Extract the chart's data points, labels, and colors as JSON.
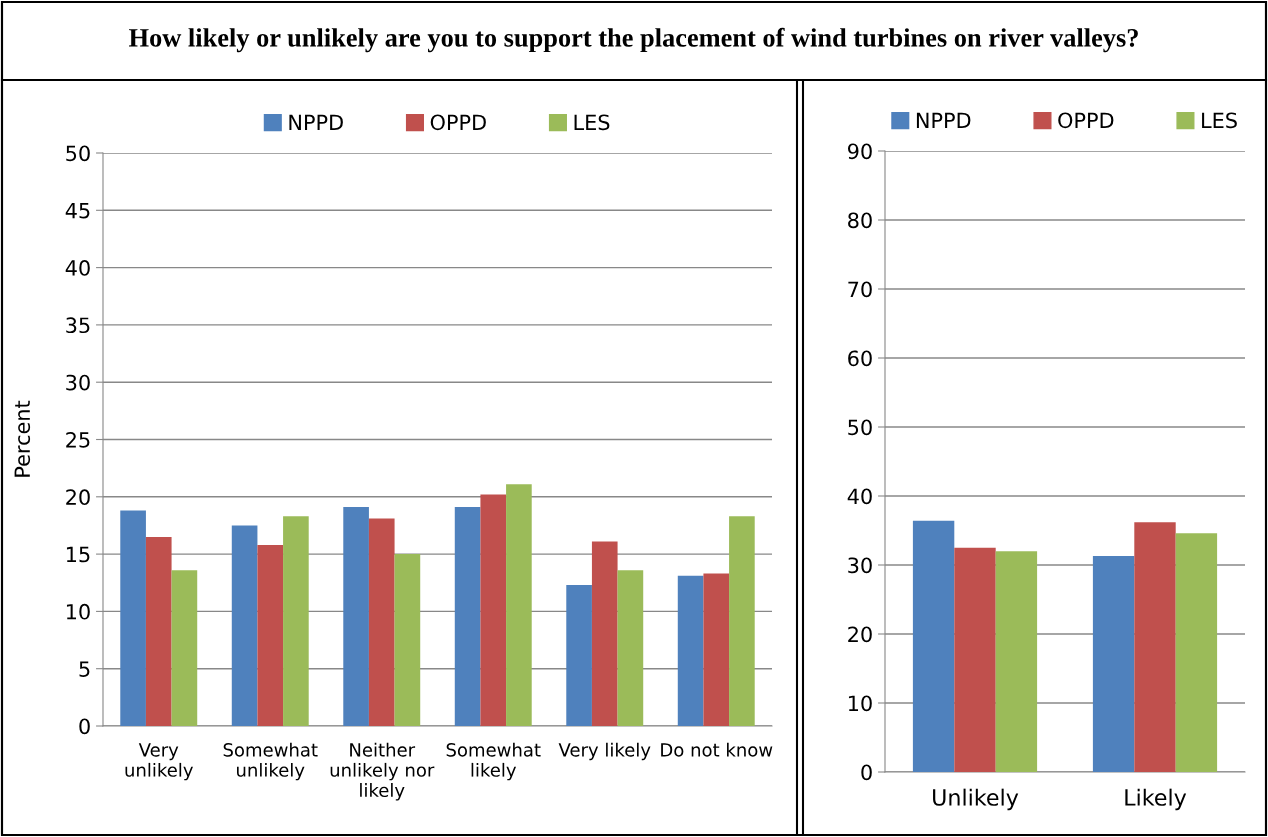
{
  "chart_data": [
    {
      "type": "bar",
      "title": "How likely or unlikely are you to support the placement of wind turbines on river valleys?",
      "ylabel": "Percent",
      "categories": [
        "Very\nunlikely",
        "Somewhat\nunlikely",
        "Neither\nunlikely nor\nlikely",
        "Somewhat\nlikely",
        "Very likely",
        "Do not know"
      ],
      "series": [
        {
          "name": "NPPD",
          "color": "#4f81bd",
          "values": [
            18.8,
            17.5,
            19.1,
            19.1,
            12.3,
            13.1
          ]
        },
        {
          "name": "OPPD",
          "color": "#c0504d",
          "values": [
            16.5,
            15.8,
            18.1,
            20.2,
            16.1,
            13.3
          ]
        },
        {
          "name": "LES",
          "color": "#9bbb59",
          "values": [
            13.6,
            18.3,
            15.0,
            21.1,
            13.6,
            18.3
          ]
        }
      ],
      "ylim": [
        0,
        50
      ],
      "yticks": [
        0,
        5,
        10,
        15,
        20,
        25,
        30,
        35,
        40,
        45,
        50
      ],
      "grid": "y",
      "legend": "top"
    },
    {
      "type": "bar",
      "categories": [
        "Unlikely",
        "Likely"
      ],
      "series": [
        {
          "name": "NPPD",
          "color": "#4f81bd",
          "values": [
            36.4,
            31.3
          ]
        },
        {
          "name": "OPPD",
          "color": "#c0504d",
          "values": [
            32.5,
            36.2
          ]
        },
        {
          "name": "LES",
          "color": "#9bbb59",
          "values": [
            32.0,
            34.6
          ]
        }
      ],
      "ylim": [
        0,
        90
      ],
      "yticks": [
        0,
        10,
        20,
        30,
        40,
        50,
        60,
        70,
        80,
        90
      ],
      "grid": "y",
      "legend": "top"
    }
  ]
}
